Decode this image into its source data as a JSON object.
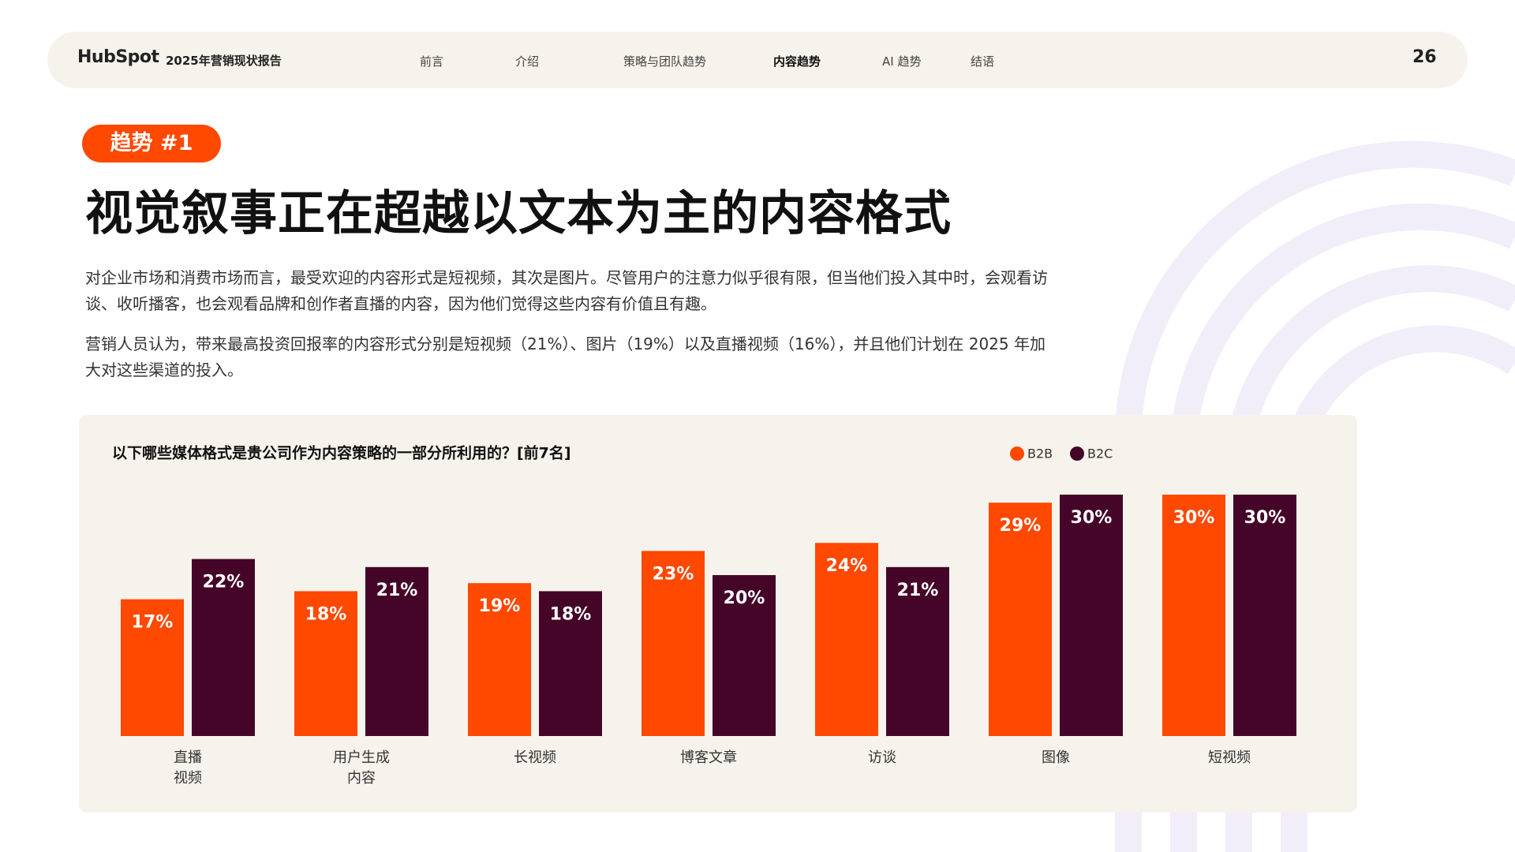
{
  "header": {
    "logo": "HubSpot",
    "report": "2025年营销现状报告",
    "nav": [
      "前言",
      "介绍",
      "策略与团队趋势",
      "内容趋势",
      "AI 趋势",
      "结语"
    ],
    "active_nav": 3,
    "page_number": "26"
  },
  "badge": "趋势 #1",
  "headline": "视觉叙事正在超越以文本为主的内容格式",
  "paragraphs": [
    "对企业市场和消费市场而言，最受欢迎的内容形式是短视频，其次是图片。尽管用户的注意力似乎很有限，但当他们投入其中时，会观看访谈、收听播客，也会观看品牌和创作者直播的内容，因为他们觉得这些内容有价值且有趣。",
    "营销人员认为，带来最高投资回报率的内容形式分别是短视频（21%）、图片（19%）以及直播视频（16%），并且他们计划在 2025 年加大对这些渠道的投入。"
  ],
  "chart_data": {
    "type": "bar",
    "title": "以下哪些媒体格式是贵公司作为内容策略的一部分所利用的？[前7名]",
    "categories": [
      "直播\n视频",
      "用户生成\n内容",
      "长视频",
      "博客文章",
      "访谈",
      "图像",
      "短视频"
    ],
    "series": [
      {
        "name": "B2B",
        "color": "#ff4800",
        "values": [
          17,
          18,
          19,
          23,
          24,
          29,
          30
        ],
        "value_labels": [
          "17%",
          "18%",
          "19%",
          "23%",
          "24%",
          "29%",
          "30%"
        ]
      },
      {
        "name": "B2C",
        "color": "#450529",
        "values": [
          22,
          21,
          18,
          20,
          21,
          30,
          30
        ],
        "value_labels": [
          "22%",
          "21%",
          "18%",
          "20%",
          "21%",
          "30%",
          "30%"
        ]
      }
    ]
  }
}
